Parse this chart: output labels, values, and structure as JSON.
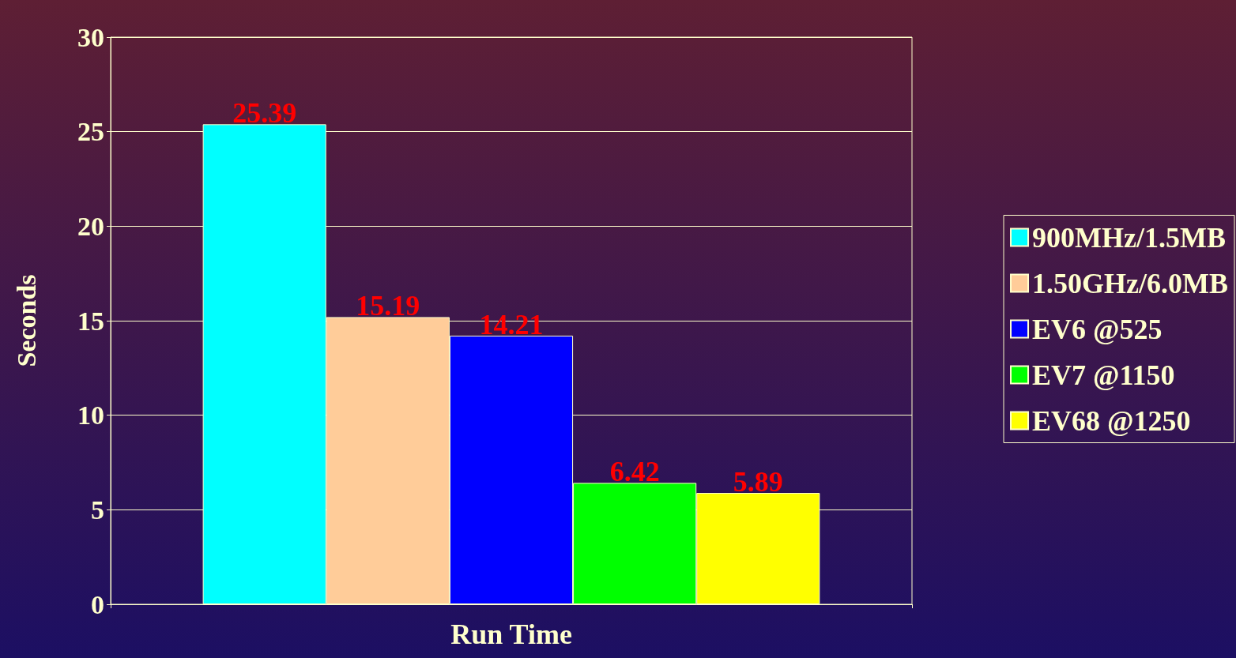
{
  "chart_data": {
    "type": "bar",
    "ylabel": "Seconds",
    "categories": [
      "Run Time"
    ],
    "series": [
      {
        "name": "900MHz/1.5MB",
        "color": "#00ffff",
        "values": [
          25.39
        ]
      },
      {
        "name": "1.50GHz/6.0MB",
        "color": "#ffcc99",
        "values": [
          15.19
        ]
      },
      {
        "name": "EV6 @525",
        "color": "#0000ff",
        "values": [
          14.21
        ]
      },
      {
        "name": "EV7 @1150",
        "color": "#00ff00",
        "values": [
          6.42
        ]
      },
      {
        "name": "EV68 @1250",
        "color": "#ffff00",
        "values": [
          5.89
        ]
      }
    ],
    "ylim": [
      0,
      30
    ],
    "yticks": [
      0,
      5,
      10,
      15,
      20,
      25,
      30
    ],
    "grid": "y",
    "legend": "right",
    "data_labels": true
  }
}
